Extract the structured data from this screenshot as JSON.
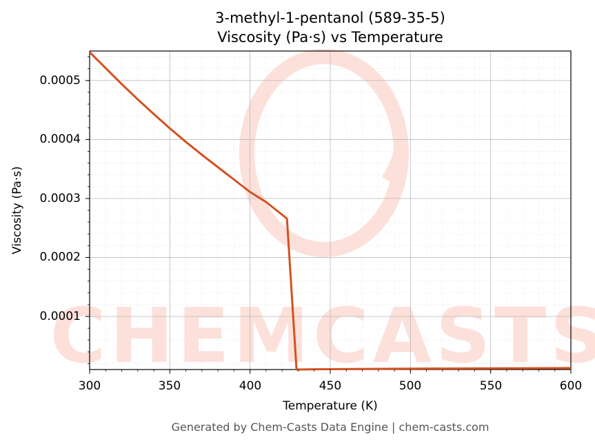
{
  "chart_data": {
    "type": "line",
    "title": "3-methyl-1-pentanol (589-35-5)",
    "subtitle": "Viscosity (Pa·s) vs Temperature",
    "xlabel": "Temperature (K)",
    "ylabel": "Viscosity (Pa·s)",
    "xlim": [
      300,
      600
    ],
    "ylim": [
      1e-05,
      0.00055
    ],
    "x_ticks": [
      "300",
      "350",
      "400",
      "450",
      "500",
      "550",
      "600"
    ],
    "y_ticks": [
      "0.0001",
      "0.0002",
      "0.0003",
      "0.0004",
      "0.0005"
    ],
    "grid": true,
    "series": [
      {
        "color": "#d4501f",
        "x": [
          300,
          310,
          320,
          330,
          340,
          350,
          360,
          370,
          380,
          390,
          400,
          410,
          423,
          429,
          440,
          500,
          550,
          600
        ],
        "y": [
          0.000548,
          0.000521,
          0.000494,
          0.000468,
          0.000443,
          0.000419,
          0.000396,
          0.000374,
          0.000353,
          0.000332,
          0.000311,
          0.000294,
          0.000266,
          1e-05,
          1.05e-05,
          1.15e-05,
          1.2e-05,
          1.25e-05
        ]
      }
    ]
  },
  "watermark": {
    "text": "CHEMCASTS",
    "color": "#fde0da"
  },
  "footer": "Generated by Chem-Casts Data Engine | chem-casts.com"
}
